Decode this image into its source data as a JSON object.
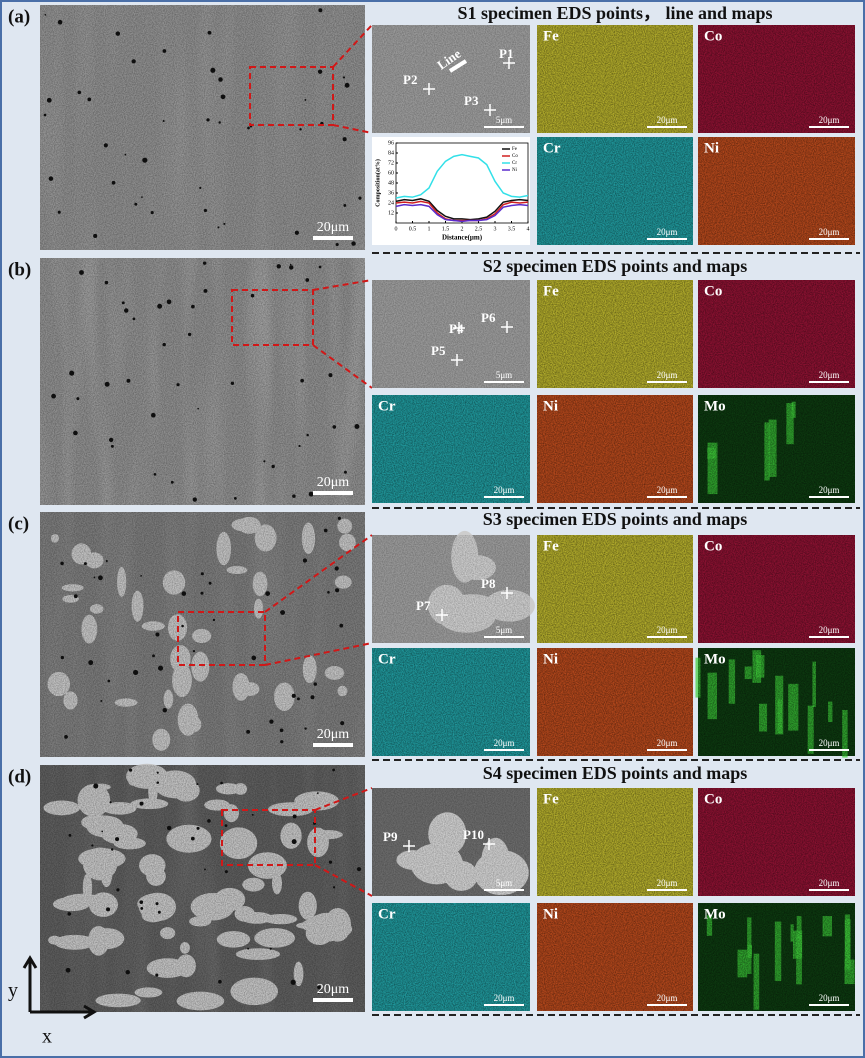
{
  "panels": [
    {
      "label": "(a)",
      "title": "S1 specimen EDS points， line and maps",
      "overview_scale": "20μm",
      "zoom": {
        "markers": [
          "P1",
          "P2",
          "P3"
        ],
        "line_label": "Line",
        "scale": "5μm"
      },
      "maps": [
        {
          "element": "Fe",
          "scale": "20μm"
        },
        {
          "element": "Co",
          "scale": "20μm"
        },
        {
          "element": "Cr",
          "scale": "20μm"
        },
        {
          "element": "Ni",
          "scale": "20μm"
        }
      ],
      "profile": {
        "type": "line",
        "x_label": "Distance(μm)",
        "y_label": "Composition(at%)",
        "xlim": [
          0,
          4
        ],
        "xticks": [
          0,
          0.5,
          1,
          1.5,
          2,
          2.5,
          3,
          3.5,
          4
        ],
        "ylim": [
          0,
          96
        ],
        "yticks": [
          12,
          24,
          36,
          48,
          60,
          72,
          84,
          96
        ],
        "x": [
          0,
          0.25,
          0.5,
          0.75,
          1,
          1.25,
          1.5,
          1.75,
          2,
          2.25,
          2.5,
          2.75,
          3,
          3.25,
          3.5,
          3.75,
          4
        ],
        "series": [
          {
            "name": "Fe",
            "color": "#111111",
            "values": [
              26,
              28,
              27,
              29,
              26,
              15,
              8,
              5,
              5,
              4,
              5,
              7,
              14,
              25,
              27,
              28,
              27
            ]
          },
          {
            "name": "Co",
            "color": "#d02020",
            "values": [
              24,
              25,
              24,
              26,
              24,
              12,
              5,
              3,
              3,
              3,
              3,
              5,
              11,
              22,
              25,
              24,
              25
            ]
          },
          {
            "name": "Cr",
            "color": "#33e0e8",
            "values": [
              30,
              32,
              31,
              34,
              42,
              62,
              74,
              80,
              82,
              80,
              78,
              70,
              50,
              36,
              32,
              31,
              33
            ]
          },
          {
            "name": "Ni",
            "color": "#5a2ccc",
            "values": [
              20,
              22,
              21,
              22,
              20,
              10,
              4,
              3,
              2,
              3,
              3,
              4,
              9,
              19,
              21,
              22,
              21
            ]
          }
        ]
      }
    },
    {
      "label": "(b)",
      "title": "S2 specimen EDS points and maps",
      "overview_scale": "20μm",
      "zoom": {
        "markers": [
          "P4",
          "P5",
          "P6"
        ],
        "scale": "5μm"
      },
      "maps": [
        {
          "element": "Fe",
          "scale": "20μm"
        },
        {
          "element": "Co",
          "scale": "20μm"
        },
        {
          "element": "Cr",
          "scale": "20μm"
        },
        {
          "element": "Ni",
          "scale": "20μm"
        },
        {
          "element": "Mo",
          "scale": "20μm"
        }
      ]
    },
    {
      "label": "(c)",
      "title": "S3 specimen EDS points and maps",
      "overview_scale": "20μm",
      "zoom": {
        "markers": [
          "P7",
          "P8"
        ],
        "scale": "5μm"
      },
      "maps": [
        {
          "element": "Fe",
          "scale": "20μm"
        },
        {
          "element": "Co",
          "scale": "20μm"
        },
        {
          "element": "Cr",
          "scale": "20μm"
        },
        {
          "element": "Ni",
          "scale": "20μm"
        },
        {
          "element": "Mo",
          "scale": "20μm"
        }
      ]
    },
    {
      "label": "(d)",
      "title": "S4 specimen EDS points and maps",
      "overview_scale": "20μm",
      "zoom": {
        "markers": [
          "P9",
          "P10"
        ],
        "scale": "5μm"
      },
      "maps": [
        {
          "element": "Fe",
          "scale": "20μm"
        },
        {
          "element": "Co",
          "scale": "20μm"
        },
        {
          "element": "Cr",
          "scale": "20μm"
        },
        {
          "element": "Ni",
          "scale": "20μm"
        },
        {
          "element": "Mo",
          "scale": "20μm"
        }
      ]
    }
  ],
  "axes": {
    "y": "y",
    "x": "x"
  }
}
